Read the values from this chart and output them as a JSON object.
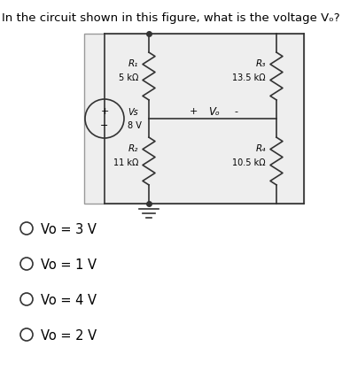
{
  "title": "In the circuit shown in this figure, what is the voltage Vₒ?",
  "title_fontsize": 9.5,
  "bg_color": "#ffffff",
  "source_voltage": "8 V",
  "source_label": "Vs",
  "vo_label": "Vₒ",
  "choices": [
    "Vo = 3 V",
    "Vo = 1 V",
    "Vo = 4 V",
    "Vo = 2 V"
  ],
  "choice_fontsize": 10.5,
  "text_color": "#000000",
  "circuit_color": "#555555",
  "box_facecolor": "#eeeeee",
  "box_edgecolor": "#999999"
}
